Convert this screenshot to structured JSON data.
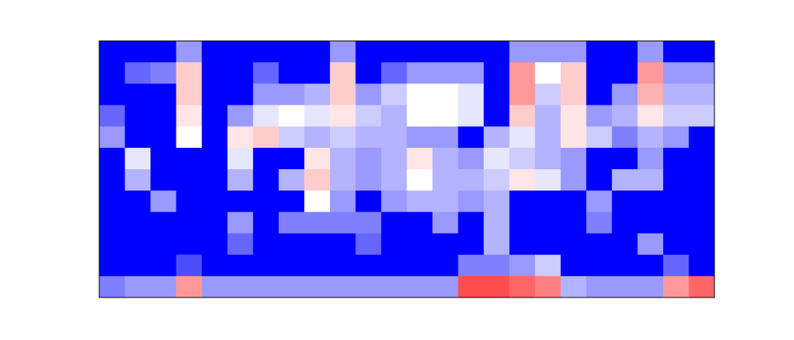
{
  "chart_data": {
    "type": "heatmap",
    "colormap": [
      "#0000ff",
      "#ffffff",
      "#ff0000"
    ],
    "zlim": [
      0,
      1
    ],
    "z": [
      [
        0,
        0,
        0,
        0.3,
        0,
        0,
        0,
        0,
        0,
        0.3,
        0,
        0,
        0,
        0,
        0,
        0,
        0.3,
        0.3,
        0.3,
        0,
        0,
        0.3,
        0,
        0
      ],
      [
        0,
        0.2,
        0.25,
        0.6,
        0,
        0,
        0.2,
        0,
        0,
        0.6,
        0,
        0.2,
        0.3,
        0.3,
        0.3,
        0,
        0.7,
        0.5,
        0.6,
        0,
        0,
        0.7,
        0.3,
        0.3
      ],
      [
        0,
        0,
        0,
        0.6,
        0,
        0,
        0.3,
        0.3,
        0.35,
        0.6,
        0.3,
        0.4,
        0.5,
        0.5,
        0.45,
        0,
        0.7,
        0.4,
        0.6,
        0,
        0.3,
        0.65,
        0.35,
        0.35
      ],
      [
        0.2,
        0,
        0,
        0.55,
        0,
        0.3,
        0.45,
        0.5,
        0.45,
        0.55,
        0.4,
        0.35,
        0.5,
        0.5,
        0.45,
        0,
        0.6,
        0.35,
        0.55,
        0.3,
        0.35,
        0.55,
        0.4,
        0.4
      ],
      [
        0.3,
        0,
        0,
        0.5,
        0,
        0.55,
        0.6,
        0.4,
        0.35,
        0.4,
        0.35,
        0.35,
        0.3,
        0.3,
        0,
        0.35,
        0.45,
        0.35,
        0.55,
        0.4,
        0.25,
        0.35,
        0.3,
        0
      ],
      [
        0,
        0.45,
        0,
        0,
        0,
        0.45,
        0,
        0,
        0.55,
        0.35,
        0.3,
        0.35,
        0.55,
        0.35,
        0.3,
        0.45,
        0.4,
        0.35,
        0.3,
        0,
        0,
        0.3,
        0,
        0
      ],
      [
        0,
        0.35,
        0,
        0,
        0,
        0.35,
        0,
        0.35,
        0.6,
        0.35,
        0.3,
        0.35,
        0.5,
        0.35,
        0.35,
        0.4,
        0.55,
        0.45,
        0.3,
        0,
        0.35,
        0.35,
        0,
        0
      ],
      [
        0,
        0,
        0.3,
        0,
        0,
        0,
        0,
        0,
        0.5,
        0.3,
        0,
        0.3,
        0.35,
        0.35,
        0.3,
        0.35,
        0,
        0,
        0,
        0.3,
        0,
        0,
        0,
        0
      ],
      [
        0,
        0,
        0,
        0,
        0,
        0.3,
        0,
        0.25,
        0.25,
        0.25,
        0.25,
        0,
        0,
        0.3,
        0,
        0.35,
        0,
        0,
        0,
        0.25,
        0,
        0,
        0,
        0
      ],
      [
        0,
        0,
        0,
        0,
        0,
        0.2,
        0,
        0,
        0,
        0,
        0.2,
        0,
        0,
        0,
        0,
        0.35,
        0,
        0,
        0,
        0,
        0,
        0.3,
        0,
        0
      ],
      [
        0,
        0,
        0,
        0.15,
        0,
        0,
        0,
        0,
        0,
        0,
        0,
        0,
        0,
        0,
        0.25,
        0.25,
        0.3,
        0.4,
        0,
        0,
        0,
        0,
        0.2,
        0
      ],
      [
        0.25,
        0.3,
        0.3,
        0.7,
        0.3,
        0.3,
        0.3,
        0.3,
        0.3,
        0.3,
        0.3,
        0.3,
        0.3,
        0.3,
        0.85,
        0.85,
        0.8,
        0.75,
        0.35,
        0.3,
        0.3,
        0.3,
        0.7,
        0.8
      ]
    ]
  }
}
